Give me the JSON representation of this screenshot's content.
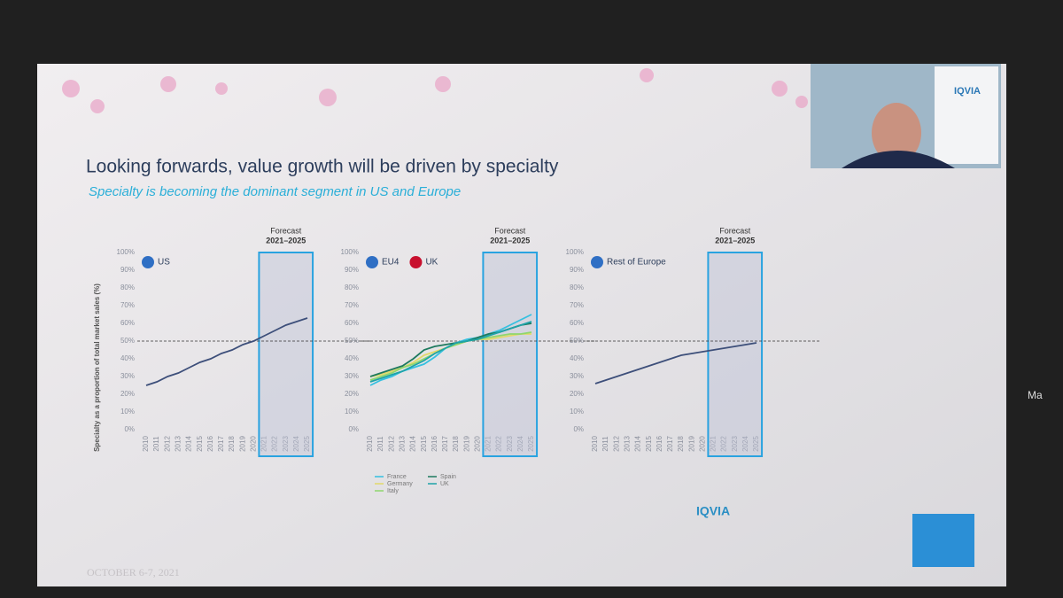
{
  "slide": {
    "title": "Looking forwards, value growth will be driven by specialty",
    "subtitle": "Specialty is becoming the dominant segment in US and Europe",
    "date": "OCTOBER 6-7, 2021",
    "logo": "IQVIA",
    "camera_logo": "IQVIA",
    "side_label": "Ma"
  },
  "chart_data": [
    {
      "type": "line",
      "header": [
        "US"
      ],
      "ylabel": "Specialty as a proportion of total market sales (%)",
      "x": [
        2010,
        2011,
        2012,
        2013,
        2014,
        2015,
        2016,
        2017,
        2018,
        2019,
        2020,
        2021,
        2022,
        2023,
        2024,
        2025
      ],
      "xlim": [
        2010,
        2025
      ],
      "xticks": [
        2010,
        2011,
        2012,
        2013,
        2014,
        2015,
        2016,
        2017,
        2018,
        2019,
        2020,
        2021,
        2022,
        2023,
        2024,
        2025
      ],
      "ylim": [
        0,
        100
      ],
      "yticks": [
        {
          "value": 0,
          "label": "0%"
        },
        {
          "value": 10,
          "label": "10%"
        },
        {
          "value": 20,
          "label": "20%"
        },
        {
          "value": 30,
          "label": "30%"
        },
        {
          "value": 40,
          "label": "40%"
        },
        {
          "value": 50,
          "label": "50%"
        },
        {
          "value": 60,
          "label": "60%"
        },
        {
          "value": 70,
          "label": "70%"
        },
        {
          "value": 80,
          "label": "80%"
        },
        {
          "value": 90,
          "label": "90%"
        },
        {
          "value": 100,
          "label": "100%"
        }
      ],
      "reference_line": 50,
      "forecast": {
        "label": "Forecast",
        "range": "2021–2025",
        "start": 2021,
        "end": 2025
      },
      "legend": false,
      "series": [
        {
          "name": "US",
          "color": "#3d4f7a",
          "values": [
            25,
            27,
            30,
            32,
            35,
            38,
            40,
            43,
            45,
            48,
            50,
            53,
            56,
            59,
            61,
            63
          ]
        }
      ]
    },
    {
      "type": "line",
      "header": [
        "EU4",
        "UK"
      ],
      "x": [
        2010,
        2011,
        2012,
        2013,
        2014,
        2015,
        2016,
        2017,
        2018,
        2019,
        2020,
        2021,
        2022,
        2023,
        2024,
        2025
      ],
      "xlim": [
        2010,
        2025
      ],
      "xticks": [
        2010,
        2011,
        2012,
        2013,
        2014,
        2015,
        2016,
        2017,
        2018,
        2019,
        2020,
        2021,
        2022,
        2023,
        2024,
        2025
      ],
      "ylim": [
        0,
        100
      ],
      "yticks": [
        {
          "value": 0,
          "label": "0%"
        },
        {
          "value": 10,
          "label": "10%"
        },
        {
          "value": 20,
          "label": "20%"
        },
        {
          "value": 30,
          "label": "30%"
        },
        {
          "value": 40,
          "label": "40%"
        },
        {
          "value": 50,
          "label": "50%"
        },
        {
          "value": 60,
          "label": "60%"
        },
        {
          "value": 70,
          "label": "70%"
        },
        {
          "value": 80,
          "label": "80%"
        },
        {
          "value": 90,
          "label": "90%"
        },
        {
          "value": 100,
          "label": "100%"
        }
      ],
      "reference_line": 50,
      "forecast": {
        "label": "Forecast",
        "range": "2021–2025",
        "start": 2021,
        "end": 2025
      },
      "legend": true,
      "series": [
        {
          "name": "France",
          "color": "#35c0e0",
          "values": [
            25,
            28,
            30,
            33,
            35,
            37,
            41,
            46,
            49,
            51,
            52,
            54,
            56,
            59,
            62,
            65
          ]
        },
        {
          "name": "Germany",
          "color": "#e2d96a",
          "values": [
            30,
            31,
            33,
            35,
            38,
            42,
            44,
            46,
            48,
            50,
            51,
            51,
            52,
            53,
            54,
            54
          ]
        },
        {
          "name": "Italy",
          "color": "#8fd66e",
          "values": [
            28,
            30,
            32,
            35,
            37,
            40,
            43,
            46,
            48,
            50,
            51,
            52,
            53,
            54,
            54,
            55
          ]
        },
        {
          "name": "Spain",
          "color": "#1e7a5e",
          "values": [
            30,
            32,
            34,
            36,
            40,
            45,
            47,
            48,
            49,
            50,
            52,
            54,
            55,
            57,
            59,
            60
          ]
        },
        {
          "name": "UK",
          "color": "#1fa3a8",
          "values": [
            27,
            29,
            31,
            33,
            36,
            39,
            43,
            46,
            49,
            50,
            51,
            53,
            55,
            57,
            59,
            61
          ]
        }
      ]
    },
    {
      "type": "line",
      "header": [
        "Rest of Europe"
      ],
      "x": [
        2010,
        2011,
        2012,
        2013,
        2014,
        2015,
        2016,
        2017,
        2018,
        2019,
        2020,
        2021,
        2022,
        2023,
        2024,
        2025
      ],
      "xlim": [
        2010,
        2025
      ],
      "xticks": [
        2010,
        2011,
        2012,
        2013,
        2014,
        2015,
        2016,
        2017,
        2018,
        2019,
        2020,
        2021,
        2022,
        2023,
        2024,
        2025
      ],
      "ylim": [
        0,
        100
      ],
      "yticks": [
        {
          "value": 0,
          "label": "0%"
        },
        {
          "value": 10,
          "label": "10%"
        },
        {
          "value": 20,
          "label": "20%"
        },
        {
          "value": 30,
          "label": "30%"
        },
        {
          "value": 40,
          "label": "40%"
        },
        {
          "value": 50,
          "label": "50%"
        },
        {
          "value": 60,
          "label": "60%"
        },
        {
          "value": 70,
          "label": "70%"
        },
        {
          "value": 80,
          "label": "80%"
        },
        {
          "value": 90,
          "label": "90%"
        },
        {
          "value": 100,
          "label": "100%"
        }
      ],
      "reference_line": 50,
      "forecast": {
        "label": "Forecast",
        "range": "2021–2025",
        "start": 2021,
        "end": 2025
      },
      "legend": false,
      "series": [
        {
          "name": "Rest of Europe",
          "color": "#3d4f7a",
          "values": [
            26,
            28,
            30,
            32,
            34,
            36,
            38,
            40,
            42,
            43,
            44,
            45,
            46,
            47,
            48,
            49
          ]
        }
      ]
    }
  ]
}
